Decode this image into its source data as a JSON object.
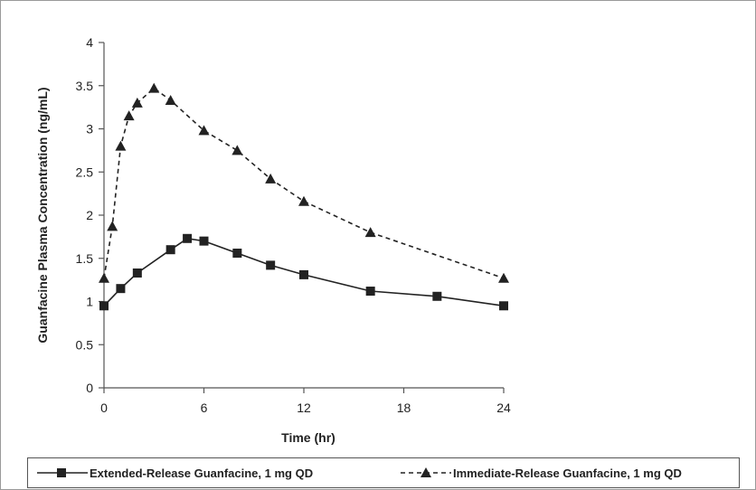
{
  "chart_data": {
    "type": "line",
    "title": "",
    "xlabel": "Time (hr)",
    "ylabel": "Guanfacine Plasma Concentration (ng/mL)",
    "xlim": [
      0,
      24
    ],
    "ylim": [
      0,
      4
    ],
    "xticks": [
      0,
      6,
      12,
      18,
      24
    ],
    "yticks": [
      0,
      0.5,
      1,
      1.5,
      2,
      2.5,
      3,
      3.5,
      4
    ],
    "ytick_labels": [
      "0",
      "0.5",
      "1",
      "1.5",
      "2",
      "2.5",
      "3",
      "3.5",
      "4"
    ],
    "grid": false,
    "legend_position": "bottom",
    "series": [
      {
        "name": "Extended-Release Guanfacine, 1 mg QD",
        "marker": "square",
        "line_style": "solid",
        "color": "#222222",
        "x": [
          0,
          1,
          2,
          4,
          5,
          6,
          8,
          10,
          12,
          16,
          20,
          24
        ],
        "y": [
          0.95,
          1.15,
          1.33,
          1.6,
          1.73,
          1.7,
          1.56,
          1.42,
          1.31,
          1.12,
          1.06,
          0.95
        ]
      },
      {
        "name": "Immediate-Release Guanfacine, 1 mg QD",
        "marker": "triangle",
        "line_style": "dashed",
        "color": "#222222",
        "x": [
          0,
          0.5,
          1,
          1.5,
          2,
          3,
          4,
          6,
          8,
          10,
          12,
          16,
          24
        ],
        "y": [
          1.27,
          1.87,
          2.8,
          3.15,
          3.3,
          3.47,
          3.33,
          2.98,
          2.75,
          2.42,
          2.16,
          1.8,
          1.27
        ]
      }
    ]
  }
}
